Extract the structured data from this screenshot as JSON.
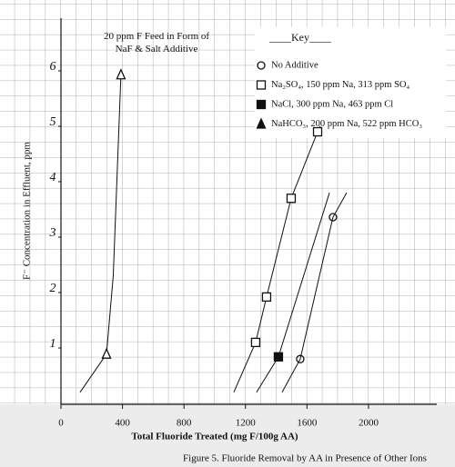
{
  "chart_data": {
    "type": "scatter",
    "annotation": "20 ppm F Feed in Form of NaF & Salt Additive",
    "x_label": "Total Fluoride Treated (mg F/100g AA)",
    "y_label": "F⁻ Concentration in Effluent, ppm",
    "caption": "Figure 5. Fluoride Removal by AA in Presence of Other Ions",
    "legend_title": "____Key____",
    "xlim": [
      0,
      2385
    ],
    "ylim": [
      0,
      6.95
    ],
    "xticks": [
      0,
      400,
      800,
      1200,
      1600,
      2000
    ],
    "yticks": [
      1,
      2,
      3,
      4,
      5,
      6
    ],
    "grid": true,
    "series": [
      {
        "name": "No Additive",
        "color": "#111",
        "marker": "circle",
        "x": [
          1556,
          1769
        ],
        "values": [
          0.8,
          3.36
        ],
        "curve_x": [
          1438,
          1556,
          1769,
          1858
        ],
        "curve_values": [
          0.2,
          0.8,
          3.36,
          3.8
        ]
      },
      {
        "name": "Na₂SO₄, 150 ppm Na, 313 ppm SO₄",
        "color": "#111",
        "marker": "square",
        "x": [
          1266,
          1337,
          1497,
          1669
        ],
        "values": [
          1.1,
          1.92,
          3.7,
          4.9
        ],
        "curve_x": [
          1124,
          1266,
          1337,
          1497,
          1669,
          1686
        ],
        "curve_values": [
          0.2,
          1.1,
          1.92,
          3.7,
          4.9,
          5.0
        ]
      },
      {
        "name": "NaCl, 300 ppm Na, 463 ppm Cl",
        "color": "#111",
        "marker": "square-filled",
        "x": [
          1414
        ],
        "values": [
          0.84
        ],
        "curve_x": [
          1272,
          1414,
          1746
        ],
        "curve_values": [
          0.2,
          0.84,
          3.8
        ]
      },
      {
        "name": "NaHCO₃, 200 ppm Na, 522 ppm HCO₃",
        "color": "#111",
        "marker": "triangle",
        "x": [
          296,
          390
        ],
        "values": [
          0.89,
          5.93
        ],
        "curve_x": [
          124,
          296,
          340,
          390
        ],
        "curve_values": [
          0.2,
          0.89,
          2.3,
          5.93
        ]
      }
    ]
  }
}
